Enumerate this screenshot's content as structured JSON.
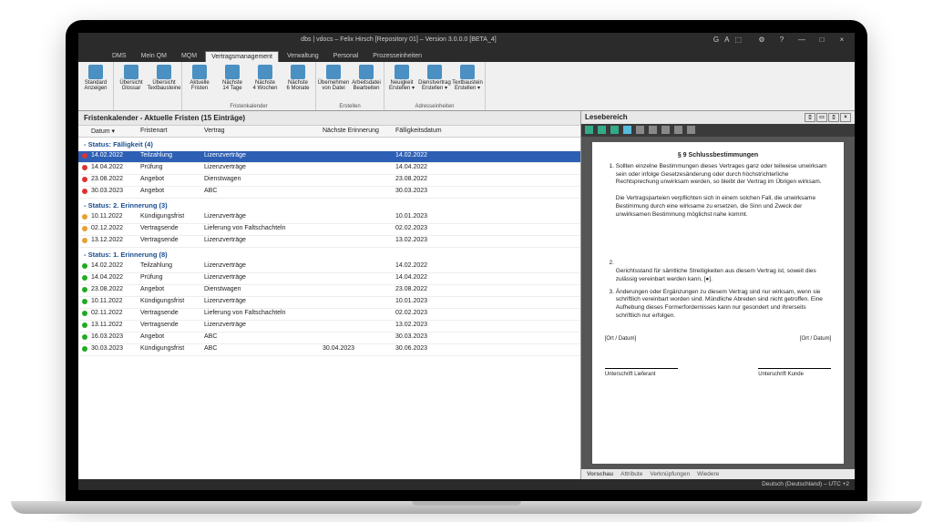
{
  "window": {
    "title": "dbs | vdocs – Felix Hirsch [Repository 01] – Version 3.0.0.0 [BETA_4]",
    "controls": {
      "settings": "⚙",
      "help": "?",
      "min": "—",
      "max": "□",
      "close": "×"
    },
    "extras": [
      "G",
      "A",
      "⬚"
    ]
  },
  "menus": [
    "DMS",
    "Mein QM",
    "MQM",
    "Vertragsmanagement",
    "Verwaltung",
    "Personal",
    "Prozesseinheiten"
  ],
  "active_menu": 3,
  "ribbon_groups": [
    {
      "name": "",
      "buttons": [
        {
          "label": "Standard\nAnzeigen"
        }
      ]
    },
    {
      "name": "",
      "buttons": [
        {
          "label": "Übersicht\nGlossar"
        },
        {
          "label": "Übersicht\nTextbausteine"
        }
      ]
    },
    {
      "name": "Fristenkalender",
      "buttons": [
        {
          "label": "Aktuelle\nFristen"
        },
        {
          "label": "Nächste\n14 Tage"
        },
        {
          "label": "Nächste\n4 Wochen"
        },
        {
          "label": "Nächste\n6 Monate"
        }
      ]
    },
    {
      "name": "Erstellen",
      "buttons": [
        {
          "label": "Übernehmen\nvon Datei"
        },
        {
          "label": "Arbeitsdatei\nBearbeiten"
        }
      ]
    },
    {
      "name": "Adresseinheiten",
      "buttons": [
        {
          "label": "Neuigkeit\nErstellen ▾"
        },
        {
          "label": "Dienstvertrag\nErstellen ▾"
        },
        {
          "label": "Textbaustein\nErstellen ▾"
        }
      ]
    }
  ],
  "fristen": {
    "header": "Fristenkalender - Aktuelle Fristen  (15 Einträge)",
    "columns": {
      "datum": "Datum ▾",
      "fristenart": "Fristenart",
      "vertrag": "Vertrag",
      "nerr": "Nächste Erinnerung",
      "faell": "Fälligkeitsdatum"
    },
    "groups": [
      {
        "label": "- Status: Fälligkeit (4)",
        "dot": "d-red",
        "rows": [
          {
            "sel": true,
            "d": "14.02.2022",
            "art": "Teilzahlung",
            "v": "Lizenzverträge",
            "n": "",
            "f": "14.02.2022"
          },
          {
            "d": "14.04.2022",
            "art": "Prüfung",
            "v": "Lizenzverträge",
            "n": "",
            "f": "14.04.2022"
          },
          {
            "d": "23.08.2022",
            "art": "Angebot",
            "v": "Dienstwagen",
            "n": "",
            "f": "23.08.2022"
          },
          {
            "d": "30.03.2023",
            "art": "Angebot",
            "v": "ABC",
            "n": "",
            "f": "30.03.2023"
          }
        ]
      },
      {
        "label": "- Status: 2. Erinnerung (3)",
        "dot": "d-org",
        "rows": [
          {
            "d": "10.11.2022",
            "art": "Kündigungsfrist",
            "v": "Lizenzverträge",
            "n": "",
            "f": "10.01.2023"
          },
          {
            "d": "02.12.2022",
            "art": "Vertragsende",
            "v": "Lieferung von Faltschachteln",
            "n": "",
            "f": "02.02.2023"
          },
          {
            "d": "13.12.2022",
            "art": "Vertragsende",
            "v": "Lizenzverträge",
            "n": "",
            "f": "13.02.2023"
          }
        ]
      },
      {
        "label": "- Status: 1. Erinnerung (8)",
        "dot": "d-grn",
        "rows": [
          {
            "d": "14.02.2022",
            "art": "Teilzahlung",
            "v": "Lizenzverträge",
            "n": "",
            "f": "14.02.2022"
          },
          {
            "d": "14.04.2022",
            "art": "Prüfung",
            "v": "Lizenzverträge",
            "n": "",
            "f": "14.04.2022"
          },
          {
            "d": "23.08.2022",
            "art": "Angebot",
            "v": "Dienstwagen",
            "n": "",
            "f": "23.08.2022"
          },
          {
            "d": "10.11.2022",
            "art": "Kündigungsfrist",
            "v": "Lizenzverträge",
            "n": "",
            "f": "10.01.2023"
          },
          {
            "d": "02.11.2022",
            "art": "Vertragsende",
            "v": "Lieferung von Faltschachteln",
            "n": "",
            "f": "02.02.2023"
          },
          {
            "d": "13.11.2022",
            "art": "Vertragsende",
            "v": "Lizenzverträge",
            "n": "",
            "f": "13.02.2023"
          },
          {
            "d": "16.03.2023",
            "art": "Angebot",
            "v": "ABC",
            "n": "",
            "f": "30.03.2023"
          },
          {
            "d": "30.03.2023",
            "art": "Kündigungsfrist",
            "v": "ABC",
            "n": "30.04.2023",
            "f": "30.06.2023"
          }
        ]
      }
    ]
  },
  "preview": {
    "header": "Lesebereich",
    "toolbar_colors": [
      "#3a8",
      "#3a8",
      "#3a8",
      "#5bd",
      "#888",
      "#888",
      "#888",
      "#888",
      "#888"
    ],
    "title": "§ 9 Schlussbestimmungen",
    "p1": "Sollten einzelne Bestimmungen dieses Vertrages ganz oder teilweise unwirksam sein oder infolge Gesetzesänderung oder durch höchstrichterliche Rechtsprechung unwirksam werden, so bleibt der Vertrag im Übrigen wirksam.",
    "p2": "Die Vertragsparteien verpflichten sich in einem solchen Fall, die unwirksame Bestimmung durch eine wirksame zu ersetzen, die Sinn und Zweck der unwirksamen Bestimmung möglichst nahe kommt.",
    "p3": "Gerichtsstand für sämtliche Streitigkeiten aus diesem Vertrag ist, soweit dies zulässig vereinbart werden kann, [●].",
    "p4": "Änderungen oder Ergänzungen zu diesem Vertrag sind nur wirksam, wenn sie schriftlich vereinbart worden sind. Mündliche Abreden sind nicht getroffen. Eine Aufhebung dieses Formerfordernisses kann nur gesondert und ihrerseits schriftlich nur erfolgen.",
    "ort": "[Ort / Datum]",
    "sig1": "Unterschrift Lieferant",
    "sig2": "Unterschrift Kunde",
    "tabs": [
      "Vorschau",
      "Attribute",
      "Verknüpfungen",
      "Wiedere"
    ]
  },
  "statusbar": "Deutsch (Deutschland) – UTC +2"
}
